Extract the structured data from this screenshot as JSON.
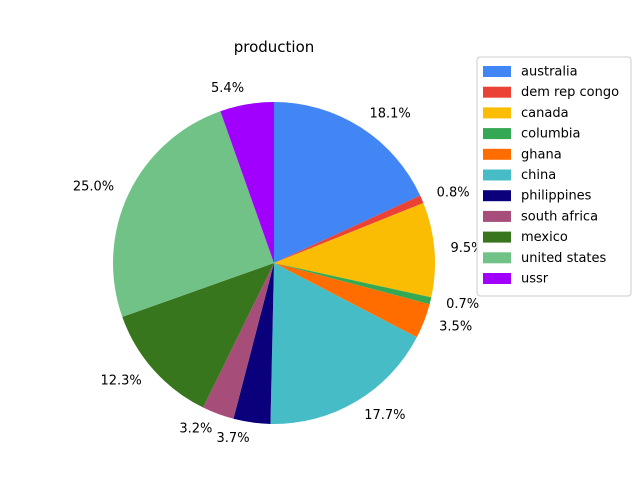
{
  "chart_data": {
    "type": "pie",
    "title": "production",
    "legend_position": "right",
    "start_angle_deg": 90,
    "direction": "clockwise",
    "slices": [
      {
        "label": "australia",
        "value": 18.1,
        "pct_label": "18.1%",
        "color": "#4285f4"
      },
      {
        "label": "dem rep congo",
        "value": 0.8,
        "pct_label": "0.8%",
        "color": "#ea4335"
      },
      {
        "label": "canada",
        "value": 9.5,
        "pct_label": "9.5%",
        "color": "#fbbc04"
      },
      {
        "label": "columbia",
        "value": 0.7,
        "pct_label": "0.7%",
        "color": "#34a853"
      },
      {
        "label": "ghana",
        "value": 3.5,
        "pct_label": "3.5%",
        "color": "#ff6d01"
      },
      {
        "label": "china",
        "value": 17.7,
        "pct_label": "17.7%",
        "color": "#46bdc6"
      },
      {
        "label": "philippines",
        "value": 3.7,
        "pct_label": "3.7%",
        "color": "#0b007b"
      },
      {
        "label": "south africa",
        "value": 3.2,
        "pct_label": "3.2%",
        "color": "#a64d79"
      },
      {
        "label": "mexico",
        "value": 12.3,
        "pct_label": "12.3%",
        "color": "#38761d"
      },
      {
        "label": "united states",
        "value": 25.0,
        "pct_label": "25.0%",
        "color": "#71c287"
      },
      {
        "label": "ussr",
        "value": 5.4,
        "pct_label": "5.4%",
        "color": "#a100ff"
      }
    ]
  }
}
